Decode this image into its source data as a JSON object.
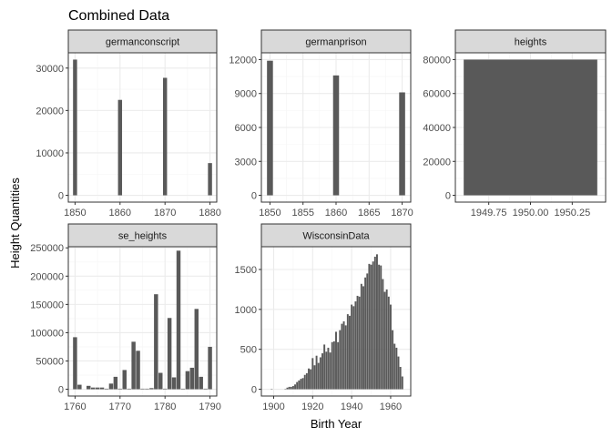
{
  "colors": {
    "bar": "#595959",
    "panel_border": "#333333",
    "strip_fill": "#d9d9d9",
    "grid_major": "#ebebeb",
    "grid_minor": "#f5f5f5",
    "tick_text": "#4d4d4d"
  },
  "chart_data": {
    "type": "bar",
    "title": "Combined Data",
    "xlabel": "Birth Year",
    "ylabel": "Height Quantities",
    "grid": true,
    "facets": [
      {
        "strip": "germanconscript",
        "xlim": [
          1848.5,
          1881.5
        ],
        "ylim": [
          -1600,
          33600
        ],
        "xticks": [
          1850,
          1860,
          1870,
          1880
        ],
        "yticks": [
          0,
          10000,
          20000,
          30000
        ],
        "ytick_labels": [
          "0",
          "10000",
          "20000",
          "30000"
        ],
        "bar_width": 0.9,
        "x": [
          1850,
          1860,
          1870,
          1880
        ],
        "values": [
          32000,
          22500,
          27700,
          7600
        ]
      },
      {
        "strip": "germanprison",
        "xlim": [
          1848.7,
          1871.3
        ],
        "ylim": [
          -600,
          12600
        ],
        "xticks": [
          1850,
          1855,
          1860,
          1865,
          1870
        ],
        "yticks": [
          0,
          3000,
          6000,
          9000,
          12000
        ],
        "ytick_labels": [
          "0",
          "3000",
          "6000",
          "9000",
          "12000"
        ],
        "bar_width": 0.9,
        "x": [
          1850,
          1860,
          1870
        ],
        "values": [
          11900,
          10600,
          9100
        ]
      },
      {
        "strip": "heights",
        "xlim": [
          1949.55,
          1950.45
        ],
        "ylim": [
          -4000,
          84000
        ],
        "xticks": [
          1949.75,
          1950.0,
          1950.25
        ],
        "xtick_labels": [
          "1949.75",
          "1950.00",
          "1950.25"
        ],
        "yticks": [
          0,
          20000,
          40000,
          60000,
          80000
        ],
        "ytick_labels": [
          "0",
          "20000",
          "40000",
          "60000",
          "80000"
        ],
        "bar_width": 0.8,
        "x": [
          1950
        ],
        "values": [
          80000
        ]
      },
      {
        "strip": "se_heights",
        "xlim": [
          1758.5,
          1791.5
        ],
        "ylim": [
          -12000,
          252000
        ],
        "xticks": [
          1760,
          1770,
          1780,
          1790
        ],
        "yticks": [
          0,
          50000,
          100000,
          150000,
          200000,
          250000
        ],
        "ytick_labels": [
          "0",
          "50000",
          "100000",
          "150000",
          "200000",
          "250000"
        ],
        "bar_width": 0.9,
        "x": [
          1760,
          1761,
          1763,
          1764,
          1765,
          1766,
          1767,
          1768,
          1769,
          1770,
          1771,
          1772,
          1773,
          1774,
          1775,
          1776,
          1777,
          1778,
          1779,
          1780,
          1781,
          1782,
          1783,
          1784,
          1785,
          1786,
          1787,
          1788,
          1789,
          1790
        ],
        "values": [
          92000,
          8000,
          6000,
          3000,
          3000,
          3000,
          1000,
          10000,
          22000,
          1000,
          34000,
          1000,
          84000,
          68000,
          1000,
          1000,
          2000,
          168000,
          29000,
          1000,
          126000,
          21000,
          245000,
          1000,
          32000,
          38000,
          142000,
          22000,
          1000,
          75000
        ]
      },
      {
        "strip": "WisconsinData",
        "xlim": [
          1893.7,
          1970.3
        ],
        "ylim": [
          -85,
          1785
        ],
        "xticks": [
          1900,
          1920,
          1940,
          1960
        ],
        "yticks": [
          0,
          500,
          1000,
          1500
        ],
        "ytick_labels": [
          "0",
          "500",
          "1000",
          "1500"
        ],
        "bar_width": 0.9,
        "x": [
          1899,
          1906,
          1907,
          1908,
          1909,
          1910,
          1911,
          1912,
          1913,
          1914,
          1915,
          1916,
          1917,
          1918,
          1919,
          1920,
          1921,
          1922,
          1923,
          1924,
          1925,
          1926,
          1927,
          1928,
          1929,
          1930,
          1931,
          1932,
          1933,
          1934,
          1935,
          1936,
          1937,
          1938,
          1939,
          1940,
          1941,
          1942,
          1943,
          1944,
          1945,
          1946,
          1947,
          1948,
          1949,
          1950,
          1951,
          1952,
          1953,
          1954,
          1955,
          1956,
          1957,
          1958,
          1959,
          1960,
          1961,
          1962,
          1963,
          1964,
          1965,
          1966
        ],
        "values": [
          5,
          5,
          20,
          30,
          30,
          40,
          60,
          90,
          110,
          130,
          140,
          180,
          200,
          260,
          250,
          390,
          300,
          420,
          330,
          400,
          450,
          560,
          470,
          520,
          460,
          590,
          600,
          720,
          590,
          740,
          820,
          850,
          800,
          940,
          920,
          1060,
          1040,
          1100,
          1170,
          1160,
          1320,
          1290,
          1400,
          1450,
          1570,
          1560,
          1600,
          1660,
          1690,
          1560,
          1550,
          1380,
          1220,
          1250,
          1160,
          1060,
          740,
          570,
          520,
          410,
          280,
          160
        ]
      }
    ]
  }
}
